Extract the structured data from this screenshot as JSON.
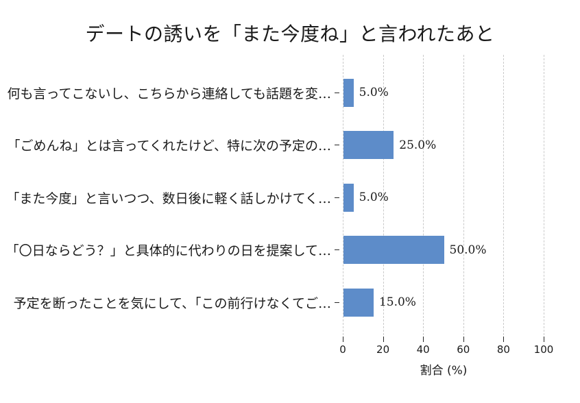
{
  "chart_data": {
    "type": "bar",
    "orientation": "horizontal",
    "title": "デートの誘いを「また今度ね」と言われたあと",
    "categories": [
      "何も言ってこないし、こちらから連絡しても話題を変…",
      "「ごめんね」とは言ってくれたけど、特に次の予定の…",
      "「また今度」と言いつつ、数日後に軽く話しかけてく…",
      "「〇日ならどう？」と具体的に代わりの日を提案して…",
      "予定を断ったことを気にして、「この前行けなくてご…"
    ],
    "values": [
      5.0,
      25.0,
      5.0,
      50.0,
      15.0
    ],
    "value_labels": [
      "5.0%",
      "25.0%",
      "5.0%",
      "50.0%",
      "15.0%"
    ],
    "xlabel": "割合 (%)",
    "xlim": [
      0,
      100
    ],
    "xticks": [
      0,
      20,
      40,
      60,
      80,
      100
    ],
    "grid": "vertical-dashed",
    "legend": "none",
    "colors": {
      "bar": "#5d8cc9",
      "gridline": "#c9c9c9",
      "text": "#1a1a1a",
      "tick": "#262626",
      "background": "#ffffff"
    }
  }
}
